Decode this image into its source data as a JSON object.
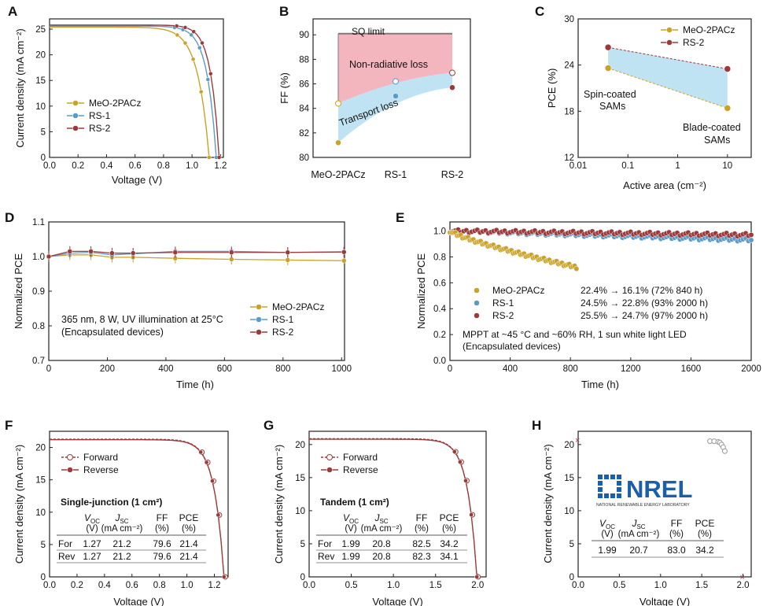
{
  "colors": {
    "meo": "#C9A227",
    "rs1": "#5B9BC8",
    "rs2": "#9B3A3A",
    "sq": "#7A7A7A",
    "nonrad_fill": "#F4B6BE",
    "transport_fill": "#BFE3F2",
    "area_fill": "#BFE3F2",
    "nrel_blue": "#1B5FA8"
  },
  "panels": {
    "A": {
      "letter": "A",
      "xlabel": "Voltage (V)",
      "ylabel": "Current density (mA cm⁻²)",
      "xticks": [
        "0.0",
        "0.2",
        "0.4",
        "0.6",
        "0.8",
        "1.0",
        "1.2"
      ],
      "yticks": [
        "0",
        "5",
        "10",
        "15",
        "20",
        "25"
      ],
      "legend": [
        "MeO-2PACz",
        "RS-1",
        "RS-2"
      ]
    },
    "B": {
      "letter": "B",
      "ylabel": "FF (%)",
      "yticks": [
        "80",
        "82",
        "84",
        "86",
        "88",
        "90"
      ],
      "ylim": [
        80,
        91.3
      ],
      "categories": [
        "MeO-2PACz",
        "RS-1",
        "RS-2"
      ],
      "sq_label": "SQ limit",
      "sq_value": 90.1,
      "nonrad_label": "Non-radiative loss",
      "transport_label": "Transport loss"
    },
    "C": {
      "letter": "C",
      "ylabel": "PCE (%)",
      "xlabel": "Active area (cm⁻²)",
      "xticks": [
        "0.01",
        "0.1",
        "1",
        "10"
      ],
      "yticks": [
        "12",
        "18",
        "24",
        "30"
      ],
      "legend": [
        "MeO-2PACz",
        "RS-2"
      ],
      "label_spin_1": "Spin-coated",
      "label_spin_2": "SAMs",
      "label_blade_1": "Blade-coated",
      "label_blade_2": "SAMs"
    },
    "D": {
      "letter": "D",
      "xlabel": "Time (h)",
      "ylabel": "Normalized PCE",
      "xticks": [
        "0",
        "200",
        "400",
        "600",
        "800",
        "1000"
      ],
      "yticks": [
        "0.7",
        "0.8",
        "0.9",
        "1.0",
        "1.1"
      ],
      "note_1": "365 nm, 8 W, UV illumination at 25°C",
      "note_2": "(Encapsulated devices)",
      "legend": [
        "MeO-2PACz",
        "RS-1",
        "RS-2"
      ]
    },
    "E": {
      "letter": "E",
      "xlabel": "Time (h)",
      "ylabel": "Normalized PCE",
      "xticks": [
        "0",
        "400",
        "800",
        "1200",
        "1600",
        "2000"
      ],
      "yticks": [
        "0.0",
        "0.2",
        "0.4",
        "0.6",
        "0.8",
        "1.0"
      ],
      "legend_names": [
        "MeO-2PACz",
        "RS-1",
        "RS-2"
      ],
      "legend_values": [
        "22.4% → 16.1% (72% 840 h)",
        "24.5% → 22.8% (93% 2000 h)",
        "25.5% → 24.7% (97% 2000 h)"
      ],
      "note_1": "MPPT at ~45 °C and ~60% RH, 1 sun white light LED",
      "note_2": "(Encapsulated devices)"
    },
    "F": {
      "letter": "F",
      "xlabel": "Voltage (V)",
      "ylabel": "Current density (mA cm⁻²)",
      "xticks": [
        "0.0",
        "0.2",
        "0.4",
        "0.6",
        "0.8",
        "1.0",
        "1.2"
      ],
      "yticks": [
        "0",
        "5",
        "10",
        "15",
        "20"
      ],
      "legend": [
        "Forward",
        "Reverse"
      ],
      "table_title": "Single-junction  (1 cm²)"
    },
    "G": {
      "letter": "G",
      "xlabel": "Voltage (V)",
      "ylabel": "Current density (mA cm⁻²)",
      "xticks": [
        "0.0",
        "0.5",
        "1.0",
        "1.5",
        "2.0"
      ],
      "yticks": [
        "0",
        "5",
        "10",
        "15",
        "20"
      ],
      "legend": [
        "Forward",
        "Reverse"
      ],
      "table_title": "Tandem  (1 cm²)"
    },
    "H": {
      "letter": "H",
      "xlabel": "Voltage (V)",
      "ylabel": "Current density (mA cm⁻²)",
      "xticks": [
        "0.0",
        "0.5",
        "1.0",
        "1.5",
        "2.0"
      ],
      "yticks": [
        "0",
        "5",
        "10",
        "15",
        "20"
      ],
      "logo_text": "NREL",
      "logo_sub": "NATIONAL RENEWABLE ENERGY LABORATORY"
    }
  },
  "tables": {
    "F": {
      "units": [
        "(V)",
        "(mA cm⁻²)",
        "(%)",
        "(%)"
      ],
      "rows": [
        {
          "label": "For",
          "voc": "1.27",
          "jsc": "21.2",
          "ff": "79.6",
          "pce": "21.4"
        },
        {
          "label": "Rev",
          "voc": "1.27",
          "jsc": "21.2",
          "ff": "79.6",
          "pce": "21.4"
        }
      ]
    },
    "G": {
      "units": [
        "(V)",
        "(mA cm⁻²)",
        "(%)",
        "(%)"
      ],
      "rows": [
        {
          "label": "For",
          "voc": "1.99",
          "jsc": "20.8",
          "ff": "82.5",
          "pce": "34.2"
        },
        {
          "label": "Rev",
          "voc": "1.99",
          "jsc": "20.8",
          "ff": "82.3",
          "pce": "34.1"
        }
      ]
    },
    "H": {
      "units": [
        "(V)",
        "(mA cm⁻²)",
        "(%)",
        "(%)"
      ],
      "rows": [
        {
          "label": "",
          "voc": "1.99",
          "jsc": "20.7",
          "ff": "83.0",
          "pce": "34.2"
        }
      ]
    }
  },
  "chart_data": [
    {
      "panel": "A",
      "type": "line",
      "xlim": [
        0,
        1.22
      ],
      "ylim": [
        0,
        27
      ],
      "series": [
        {
          "name": "MeO-2PACz",
          "voc": 1.12,
          "jsc": 25.4,
          "ff_shape": 14
        },
        {
          "name": "RS-1",
          "voc": 1.17,
          "jsc": 25.6,
          "ff_shape": 18
        },
        {
          "name": "RS-2",
          "voc": 1.19,
          "jsc": 25.8,
          "ff_shape": 20
        }
      ]
    },
    {
      "panel": "B",
      "type": "scatter",
      "categories": [
        "MeO-2PACz",
        "RS-1",
        "RS-2"
      ],
      "series": [
        {
          "name": "MeO-2PACz",
          "values": [
            81.2,
            84.4
          ]
        },
        {
          "name": "RS-1",
          "values": [
            85.0,
            86.2
          ]
        },
        {
          "name": "RS-2",
          "values": [
            85.7,
            86.9
          ]
        }
      ],
      "sq_limit": 90.1
    },
    {
      "panel": "C",
      "type": "line",
      "x_scale": "log",
      "xlim": [
        0.01,
        30
      ],
      "ylim": [
        12,
        30
      ],
      "series": [
        {
          "name": "MeO-2PACz",
          "x": [
            0.04,
            10
          ],
          "values": [
            23.6,
            18.4
          ]
        },
        {
          "name": "RS-2",
          "x": [
            0.04,
            10
          ],
          "values": [
            26.3,
            23.5
          ]
        }
      ]
    },
    {
      "panel": "D",
      "type": "line",
      "xlim": [
        0,
        1010
      ],
      "ylim": [
        0.7,
        1.1
      ],
      "x": [
        0,
        72,
        144,
        216,
        288,
        432,
        624,
        816,
        1008
      ],
      "series": [
        {
          "name": "MeO-2PACz",
          "values": [
            1.0,
            1.005,
            1.005,
            0.998,
            0.998,
            0.995,
            0.992,
            0.99,
            0.988
          ],
          "error": 0.015
        },
        {
          "name": "RS-1",
          "values": [
            1.0,
            1.01,
            1.012,
            1.005,
            1.008,
            1.015,
            1.015,
            1.012,
            1.014
          ],
          "error": 0.015
        },
        {
          "name": "RS-2",
          "values": [
            1.0,
            1.015,
            1.015,
            1.01,
            1.01,
            1.012,
            1.012,
            1.012,
            1.013
          ],
          "error": 0.015
        }
      ]
    },
    {
      "panel": "E",
      "type": "scatter",
      "xlim": [
        0,
        2000
      ],
      "ylim": [
        0,
        1.07
      ],
      "series": [
        {
          "name": "MeO-2PACz",
          "start": 1.0,
          "end": 0.72,
          "t_end": 840
        },
        {
          "name": "RS-1",
          "start": 1.0,
          "end": 0.93,
          "t_end": 2000
        },
        {
          "name": "RS-2",
          "start": 1.0,
          "end": 0.97,
          "t_end": 2000
        }
      ]
    },
    {
      "panel": "F",
      "type": "line",
      "xlim": [
        0,
        1.3
      ],
      "ylim": [
        0,
        22.5
      ],
      "series": [
        {
          "name": "Forward",
          "voc": 1.27,
          "jsc": 21.2
        },
        {
          "name": "Reverse",
          "voc": 1.27,
          "jsc": 21.2
        }
      ]
    },
    {
      "panel": "G",
      "type": "line",
      "xlim": [
        0,
        2.1
      ],
      "ylim": [
        0,
        22
      ],
      "series": [
        {
          "name": "Forward",
          "voc": 1.99,
          "jsc": 20.8
        },
        {
          "name": "Reverse",
          "voc": 1.99,
          "jsc": 20.8
        }
      ]
    },
    {
      "panel": "H",
      "type": "scatter",
      "xlim": [
        0,
        2.1
      ],
      "ylim": [
        0,
        22
      ],
      "series": [
        {
          "name": "NREL",
          "x": [
            0.0,
            1.6,
            1.65,
            1.7,
            1.72,
            1.74,
            1.76,
            1.78,
            2.0
          ],
          "values": [
            20.7,
            20.5,
            20.5,
            20.4,
            20.3,
            20.0,
            19.6,
            19.0,
            0.0
          ]
        }
      ]
    }
  ]
}
